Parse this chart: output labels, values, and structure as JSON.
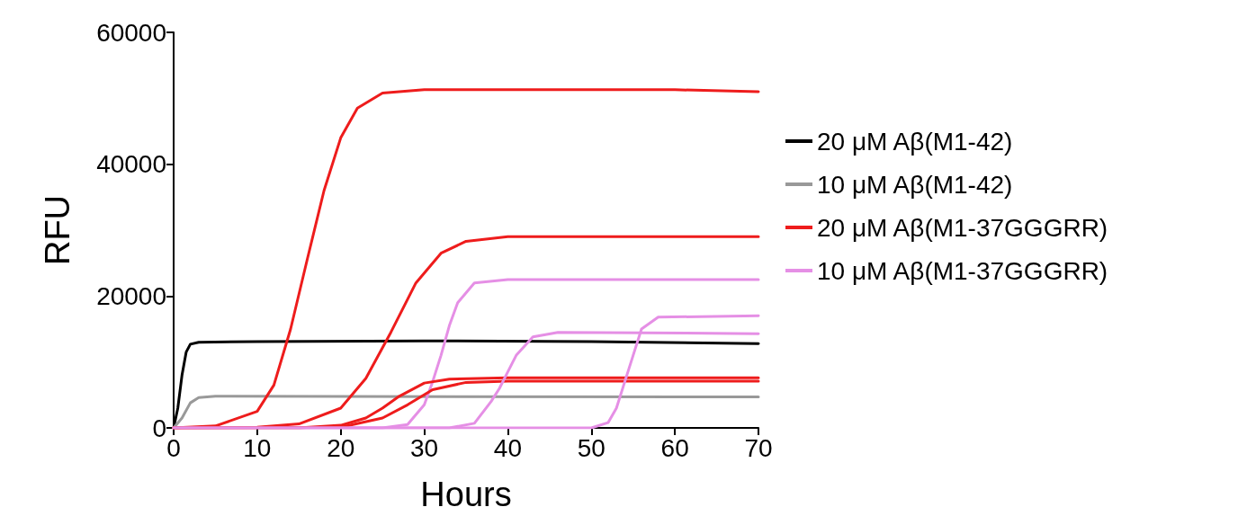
{
  "chart_data": {
    "type": "line",
    "xlabel": "Hours",
    "ylabel": "RFU",
    "xlim": [
      0,
      70
    ],
    "ylim": [
      0,
      60000
    ],
    "xticks": [
      0,
      10,
      20,
      30,
      40,
      50,
      60,
      70
    ],
    "yticks": [
      0,
      20000,
      40000,
      60000
    ],
    "grid": false,
    "legend": "right",
    "marker": "none",
    "line_style": "solid",
    "series": [
      {
        "name": "20 μM Aβ(M1-42)",
        "color": "#000000",
        "x": [
          0,
          0.5,
          1,
          1.5,
          2,
          3,
          10,
          30,
          50,
          70
        ],
        "values": [
          0,
          3000,
          8000,
          11500,
          12700,
          13000,
          13100,
          13200,
          13100,
          12800
        ]
      },
      {
        "name": "10 μM Aβ(M1-42)",
        "color": "#999999",
        "x": [
          0,
          1,
          2,
          3,
          5,
          70
        ],
        "values": [
          0,
          1500,
          3800,
          4600,
          4800,
          4700
        ]
      },
      {
        "name": "20 μM Aβ(M1-37GGGRR)",
        "color": "#ee1c1c",
        "x": [
          0,
          5,
          10,
          12,
          14,
          16,
          18,
          20,
          22,
          25,
          30,
          40,
          50,
          60,
          70
        ],
        "values": [
          0,
          300,
          2500,
          6500,
          15000,
          25600,
          36000,
          44000,
          48500,
          50800,
          51300,
          51300,
          51300,
          51300,
          51000
        ]
      },
      {
        "name": "10 μM Aβ(M1-37GGGRR)",
        "color": "#e58fe5",
        "x": [
          0,
          25,
          28,
          30,
          31,
          32,
          33,
          34,
          36,
          40,
          70
        ],
        "values": [
          0,
          0,
          500,
          3500,
          7000,
          11000,
          15500,
          19000,
          22000,
          22500,
          22500
        ]
      },
      {
        "color": "#ee1c1c",
        "x": [
          0,
          10,
          15,
          20,
          23,
          26,
          29,
          32,
          35,
          40,
          50,
          60,
          70
        ],
        "values": [
          0,
          100,
          600,
          3000,
          7500,
          14500,
          22000,
          26500,
          28300,
          29000,
          29000,
          29000,
          29000
        ]
      },
      {
        "color": "#ee1c1c",
        "x": [
          0,
          15,
          20,
          23,
          25,
          27,
          30,
          33,
          40,
          70
        ],
        "values": [
          0,
          0,
          400,
          1500,
          3000,
          4800,
          6800,
          7400,
          7600,
          7600
        ]
      },
      {
        "color": "#ee1c1c",
        "x": [
          0,
          20,
          25,
          28,
          31,
          35,
          40,
          70
        ],
        "values": [
          0,
          100,
          1500,
          3500,
          5800,
          6900,
          7100,
          7100
        ]
      },
      {
        "color": "#e58fe5",
        "x": [
          0,
          33,
          36,
          38,
          39,
          40,
          41,
          43,
          46,
          70
        ],
        "values": [
          0,
          0,
          700,
          4000,
          6000,
          8500,
          11000,
          13800,
          14500,
          14300
        ]
      },
      {
        "color": "#e58fe5",
        "x": [
          0,
          50,
          52,
          53,
          54,
          55,
          56,
          58,
          70
        ],
        "values": [
          0,
          0,
          800,
          3000,
          7000,
          11000,
          15000,
          16800,
          17000
        ]
      }
    ]
  }
}
